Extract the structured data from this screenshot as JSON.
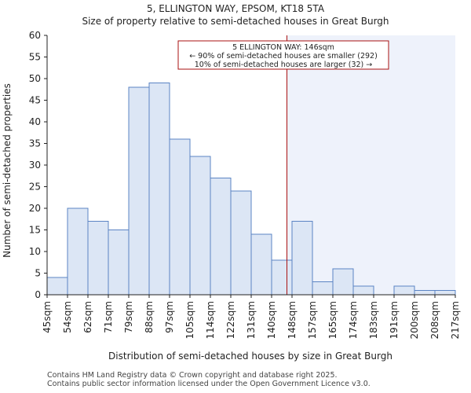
{
  "title": "5, ELLINGTON WAY, EPSOM, KT18 5TA",
  "subtitle": "Size of property relative to semi-detached houses in Great Burgh",
  "footer_line1": "Contains HM Land Registry data © Crown copyright and database right 2025.",
  "footer_line2": "Contains public sector information licensed under the Open Government Licence v3.0.",
  "colors": {
    "bar_fill": "#dce6f5",
    "bar_stroke": "#5b84c4",
    "highlight_bg": "#eef2fb",
    "marker_line": "#aa1111",
    "annotation_border": "#aa1111",
    "axis": "#222222"
  },
  "chart_data": {
    "type": "bar",
    "title": "5, ELLINGTON WAY, EPSOM, KT18 5TA",
    "subtitle": "Size of property relative to semi-detached houses in Great Burgh",
    "xlabel": "Distribution of semi-detached houses by size in Great Burgh",
    "ylabel": "Number of semi-detached properties",
    "ylim": [
      0,
      60
    ],
    "yticks": [
      0,
      5,
      10,
      15,
      20,
      25,
      30,
      35,
      40,
      45,
      50,
      55,
      60
    ],
    "tick_labels": [
      "45sqm",
      "54sqm",
      "62sqm",
      "71sqm",
      "79sqm",
      "88sqm",
      "97sqm",
      "105sqm",
      "114sqm",
      "122sqm",
      "131sqm",
      "140sqm",
      "148sqm",
      "157sqm",
      "165sqm",
      "174sqm",
      "183sqm",
      "191sqm",
      "200sqm",
      "208sqm",
      "217sqm"
    ],
    "values": [
      4,
      20,
      17,
      15,
      48,
      49,
      36,
      32,
      27,
      24,
      14,
      8,
      17,
      3,
      6,
      2,
      0,
      2,
      1,
      1
    ],
    "marker_value_sqm": 146,
    "marker_bin_position": 11.75,
    "annotation": {
      "line1": "5 ELLINGTON WAY: 146sqm",
      "line2": "← 90% of semi-detached houses are smaller (292)",
      "line3": "10% of semi-detached houses are larger (32) →"
    }
  }
}
